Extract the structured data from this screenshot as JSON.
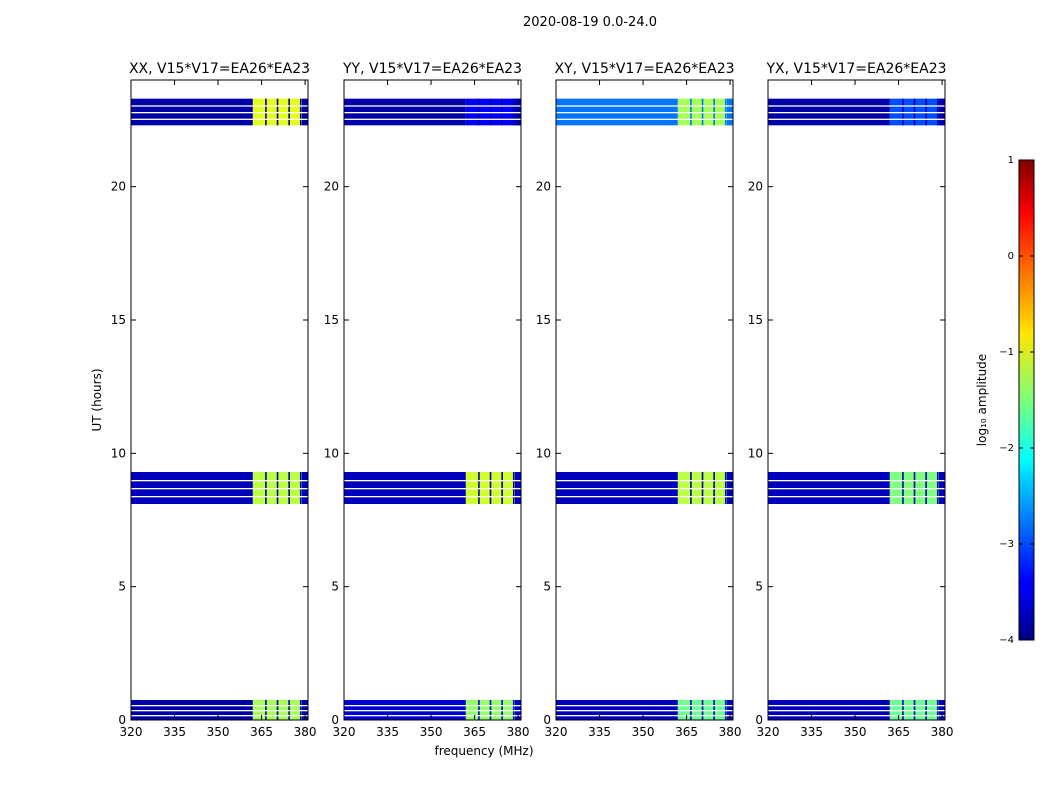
{
  "figure": {
    "suptitle": "2020-08-19 0.0-24.0",
    "colorbar_label": "log₁₀ amplitude",
    "colorbar_ticks": [
      1,
      0,
      -1,
      -2,
      -3,
      -4
    ],
    "colormap": "jet"
  },
  "chart_data": [
    {
      "type": "heatmap",
      "title": "XX, V15*V17=EA26*EA23",
      "xlabel": "",
      "ylabel": "UT (hours)",
      "xlim": [
        320,
        381
      ],
      "ylim": [
        0,
        24
      ],
      "xticks": [
        320,
        335,
        350,
        365,
        380
      ],
      "yticks": [
        0,
        5,
        10,
        15,
        20
      ],
      "clim": [
        -4,
        1
      ],
      "bands": [
        {
          "t_start": 0.0,
          "t_end": 0.75,
          "low_freq_level": -3.8,
          "high_freq_level": -1.3
        },
        {
          "t_start": 8.1,
          "t_end": 9.3,
          "low_freq_level": -3.7,
          "high_freq_level": -1.2
        },
        {
          "t_start": 22.3,
          "t_end": 23.3,
          "low_freq_level": -3.8,
          "high_freq_level": -1.0
        }
      ]
    },
    {
      "type": "heatmap",
      "title": "YY, V15*V17=EA26*EA23",
      "xlabel": "frequency (MHz)",
      "ylabel": "",
      "xlim": [
        320,
        381
      ],
      "ylim": [
        0,
        24
      ],
      "xticks": [
        320,
        335,
        350,
        365,
        380
      ],
      "yticks": [
        0,
        5,
        10,
        15,
        20
      ],
      "clim": [
        -4,
        1
      ],
      "bands": [
        {
          "t_start": 0.0,
          "t_end": 0.75,
          "low_freq_level": -3.6,
          "high_freq_level": -1.4
        },
        {
          "t_start": 8.1,
          "t_end": 9.3,
          "low_freq_level": -3.7,
          "high_freq_level": -1.1
        },
        {
          "t_start": 22.3,
          "t_end": 23.3,
          "low_freq_level": -3.8,
          "high_freq_level": -3.4
        }
      ]
    },
    {
      "type": "heatmap",
      "title": "XY, V15*V17=EA26*EA23",
      "xlabel": "",
      "ylabel": "",
      "xlim": [
        320,
        381
      ],
      "ylim": [
        0,
        24
      ],
      "xticks": [
        320,
        335,
        350,
        365,
        380
      ],
      "yticks": [
        0,
        5,
        10,
        15,
        20
      ],
      "clim": [
        -4,
        1
      ],
      "bands": [
        {
          "t_start": 0.0,
          "t_end": 0.75,
          "low_freq_level": -3.7,
          "high_freq_level": -1.6
        },
        {
          "t_start": 8.1,
          "t_end": 9.3,
          "low_freq_level": -3.7,
          "high_freq_level": -1.2
        },
        {
          "t_start": 22.3,
          "t_end": 23.3,
          "low_freq_level": -2.8,
          "high_freq_level": -1.3
        }
      ]
    },
    {
      "type": "heatmap",
      "title": "YX, V15*V17=EA26*EA23",
      "xlabel": "",
      "ylabel": "",
      "xlim": [
        320,
        381
      ],
      "ylim": [
        0,
        24
      ],
      "xticks": [
        320,
        335,
        350,
        365,
        380
      ],
      "yticks": [
        0,
        5,
        10,
        15,
        20
      ],
      "clim": [
        -4,
        1
      ],
      "bands": [
        {
          "t_start": 0.0,
          "t_end": 0.75,
          "low_freq_level": -3.7,
          "high_freq_level": -1.6
        },
        {
          "t_start": 8.1,
          "t_end": 9.3,
          "low_freq_level": -3.7,
          "high_freq_level": -1.5
        },
        {
          "t_start": 22.3,
          "t_end": 23.3,
          "low_freq_level": -3.8,
          "high_freq_level": -3.0
        }
      ]
    }
  ]
}
